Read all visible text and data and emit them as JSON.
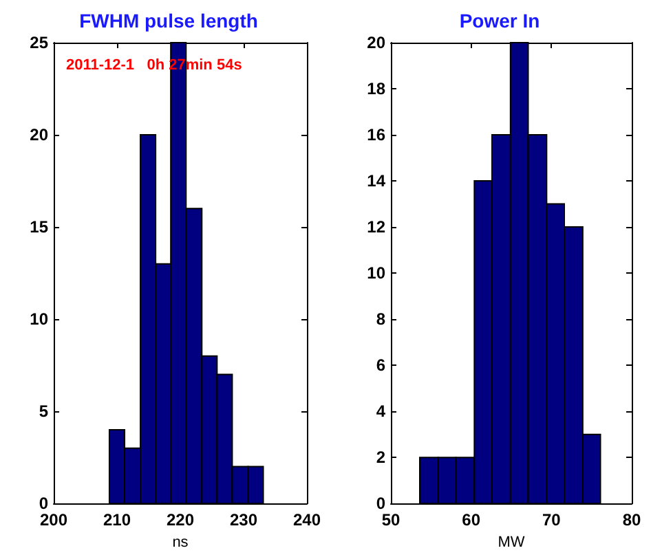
{
  "chart_data": [
    {
      "type": "histogram",
      "title": "FWHM pulse length",
      "xlabel": "ns",
      "annotations": [
        "2011-12-1   0h 27min 54s"
      ],
      "color": "#000080",
      "bins": [
        208.8,
        211.2,
        213.7,
        216.1,
        218.5,
        220.9,
        223.4,
        225.8,
        228.2,
        230.7,
        233.1
      ],
      "values": [
        4,
        3,
        20,
        13,
        25,
        16,
        8,
        7,
        2,
        2
      ],
      "xlim": [
        200,
        240
      ],
      "xticks": [
        200,
        210,
        220,
        230,
        240
      ],
      "ylim": [
        0,
        25
      ],
      "yticks": [
        0,
        5,
        10,
        15,
        20,
        25
      ],
      "grid": false
    },
    {
      "type": "histogram",
      "title": "Power In",
      "xlabel": "MW",
      "color": "#000080",
      "bins": [
        53.6,
        55.9,
        58.1,
        60.4,
        62.6,
        64.9,
        67.1,
        69.4,
        71.6,
        73.9,
        76.1
      ],
      "values": [
        2,
        2,
        2,
        14,
        16,
        20,
        16,
        13,
        12,
        3
      ],
      "xlim": [
        50,
        80
      ],
      "xticks": [
        50,
        60,
        70,
        80
      ],
      "ylim": [
        0,
        20
      ],
      "yticks": [
        0,
        2,
        4,
        6,
        8,
        10,
        12,
        14,
        16,
        18,
        20
      ],
      "grid": false
    }
  ]
}
